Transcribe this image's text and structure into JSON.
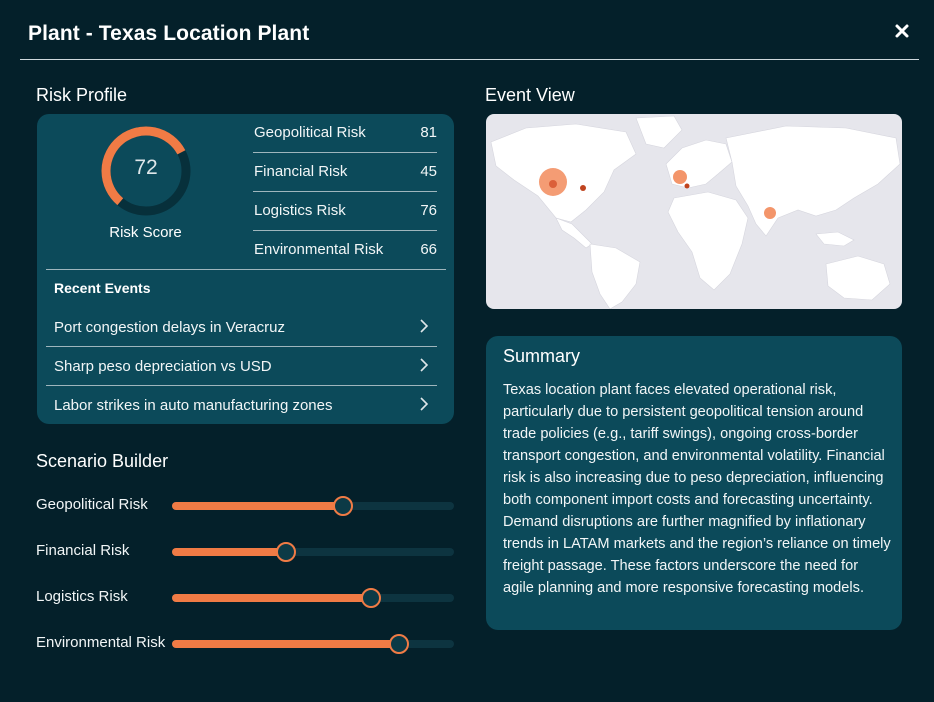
{
  "header": {
    "title": "Plant - Texas Location Plant",
    "close_icon": "close-icon"
  },
  "risk_profile": {
    "title": "Risk Profile",
    "score": "72",
    "score_value": 72,
    "score_label": "Risk Score",
    "risks": [
      {
        "name": "Geopolitical Risk",
        "value": "81"
      },
      {
        "name": "Financial Risk",
        "value": "45"
      },
      {
        "name": "Logistics Risk",
        "value": "76"
      },
      {
        "name": "Environmental Risk",
        "value": "66"
      }
    ],
    "recent_events_title": "Recent Events",
    "events": [
      {
        "label": "Port congestion delays in Veracruz"
      },
      {
        "label": "Sharp peso depreciation vs USD"
      },
      {
        "label": "Labor strikes in auto manufacturing zones"
      }
    ]
  },
  "scenario_builder": {
    "title": "Scenario Builder",
    "sliders": [
      {
        "label": "Geopolitical Risk",
        "level": 0.607
      },
      {
        "label": "Financial Risk",
        "level": 0.404
      },
      {
        "label": "Logistics Risk",
        "level": 0.706
      },
      {
        "label": "Environmental Risk",
        "level": 0.805
      }
    ]
  },
  "event_view": {
    "title": "Event View"
  },
  "summary": {
    "title": "Summary",
    "text": "Texas location plant faces elevated operational risk, particularly due to persistent geopolitical tension around trade policies (e.g., tariff swings), ongoing cross-border transport congestion, and environmental volatility. Financial risk is also increasing due to peso depreciation, influencing both component import costs and forecasting uncertainty. Demand disruptions are further magnified by inflationary trends in LATAM markets and the region’s reliance on timely freight passage. These factors underscore the need for agile planning and more responsive forecasting models."
  },
  "colors": {
    "accent": "#f07b45",
    "background": "#04202a",
    "card": "#0c4a5a",
    "map_land": "#ffffff",
    "map_water": "#e6e6ec"
  }
}
